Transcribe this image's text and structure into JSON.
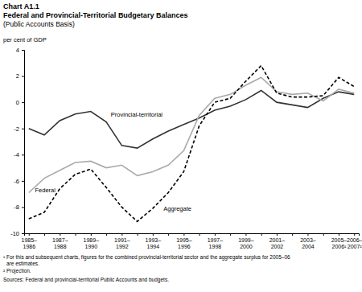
{
  "chart_data": {
    "type": "line",
    "chart_label": "Chart A1.1",
    "title": "Federal and Provincial-Territorial Budgetary Balances",
    "subtitle": "(Public Accounts Basis)",
    "y_label": "per cent of GDP",
    "categories": [
      "1985–1986",
      null,
      "1987–1988",
      null,
      "1989–1990",
      null,
      "1991–1992",
      null,
      "1993–1994",
      null,
      "1995–1996",
      null,
      "1997–1998",
      null,
      "1999–2000",
      null,
      "2001–2002",
      null,
      "2003–2004",
      null,
      "2005–2006¹",
      "2006–2007²"
    ],
    "series": [
      {
        "name": "Provincial-territorial",
        "color": "#333333",
        "line_style": "solid",
        "values": [
          -2.0,
          -2.5,
          -1.4,
          -0.9,
          -0.7,
          -1.5,
          -3.3,
          -3.5,
          -2.8,
          -2.2,
          -1.7,
          -1.2,
          -0.6,
          -0.3,
          0.2,
          0.9,
          0.0,
          -0.2,
          -0.4,
          0.3,
          0.8,
          0.6
        ]
      },
      {
        "name": "Federal",
        "color": "#aaaaaa",
        "line_style": "solid",
        "values": [
          -6.9,
          -5.8,
          -5.2,
          -4.6,
          -4.5,
          -5.0,
          -4.8,
          -5.6,
          -5.3,
          -4.8,
          -3.7,
          -1.0,
          0.3,
          0.6,
          1.3,
          1.9,
          0.8,
          0.6,
          0.7,
          0.1,
          1.0,
          0.7
        ]
      },
      {
        "name": "Aggregate",
        "color": "#000000",
        "line_style": "dashed",
        "values": [
          -8.9,
          -8.4,
          -6.6,
          -5.5,
          -5.1,
          -6.5,
          -8.0,
          -9.1,
          -8.1,
          -6.9,
          -5.3,
          -1.8,
          0.0,
          0.3,
          1.6,
          2.8,
          0.7,
          0.4,
          0.4,
          0.5,
          1.9,
          1.2
        ]
      }
    ],
    "ylim": [
      -10,
      4
    ],
    "yticks": [
      -10,
      -8,
      -6,
      -4,
      -2,
      0,
      2,
      4
    ],
    "grid": false,
    "footnotes": [
      "¹ For this and subsequent charts, figures for the combined provincial-territorial sector and the aggregate surplus for 2005–06 are estimates.",
      "² Projection."
    ],
    "source": "Sources: Federal and provincial-territorial Public Accounts and budgets."
  }
}
